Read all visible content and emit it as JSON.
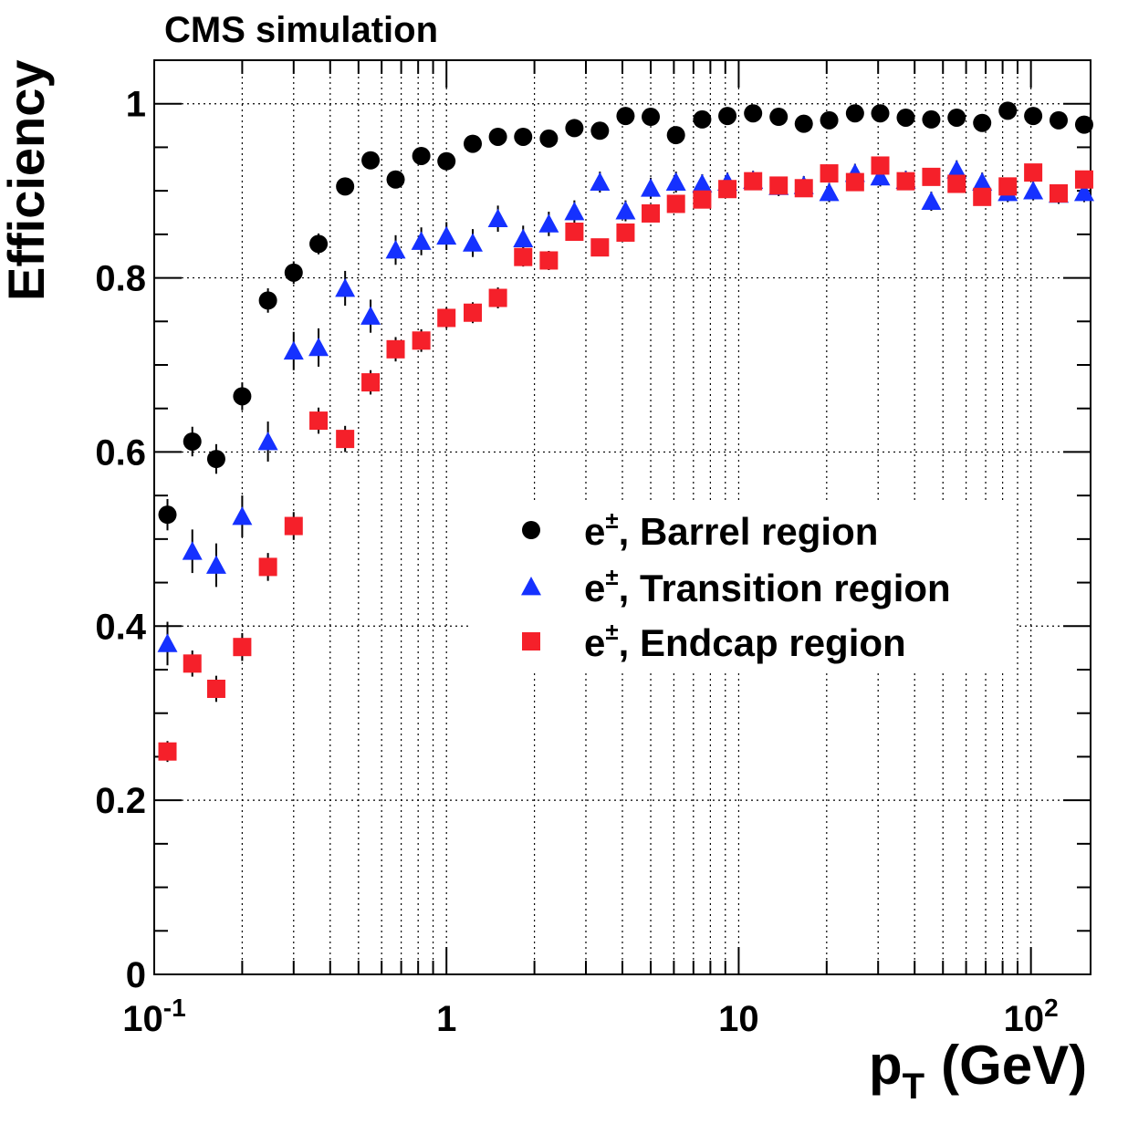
{
  "chart_data": {
    "type": "scatter",
    "title": "CMS simulation",
    "xlabel_main": "p",
    "xlabel_sub": "T",
    "xlabel_unit": "(GeV)",
    "ylabel": "Efficiency",
    "x_scale": "log",
    "xlim": [
      0.1,
      160
    ],
    "ylim": [
      0,
      1.05
    ],
    "grid": true,
    "legend_position": "center-right",
    "x_tick_labels": [
      {
        "value": 0.1,
        "base": "10",
        "exp": "-1"
      },
      {
        "value": 1,
        "base": "1",
        "exp": ""
      },
      {
        "value": 10,
        "base": "10",
        "exp": ""
      },
      {
        "value": 100,
        "base": "10",
        "exp": "2"
      }
    ],
    "y_tick_labels": [
      {
        "value": 0,
        "label": "0"
      },
      {
        "value": 0.2,
        "label": "0.2"
      },
      {
        "value": 0.4,
        "label": "0.4"
      },
      {
        "value": 0.6,
        "label": "0.6"
      },
      {
        "value": 0.8,
        "label": "0.8"
      },
      {
        "value": 1,
        "label": "1"
      }
    ],
    "x": [
      0.111,
      0.135,
      0.163,
      0.2,
      0.245,
      0.3,
      0.365,
      0.45,
      0.55,
      0.67,
      0.82,
      1.0,
      1.23,
      1.5,
      1.83,
      2.24,
      2.74,
      3.35,
      4.1,
      5.0,
      6.1,
      7.5,
      9.15,
      11.2,
      13.7,
      16.7,
      20.4,
      25.0,
      30.5,
      37.3,
      45.6,
      55.7,
      68.1,
      83.3,
      101.8,
      124.4,
      152.1
    ],
    "series": [
      {
        "name": "Barrel region",
        "prefix": "e",
        "superscript": "±",
        "suffix": ", Barrel region",
        "marker": "circle",
        "color": "#000000",
        "y": [
          0.528,
          0.612,
          0.592,
          0.664,
          0.774,
          0.806,
          0.839,
          0.905,
          0.935,
          0.913,
          0.94,
          0.934,
          0.954,
          0.962,
          0.962,
          0.96,
          0.972,
          0.969,
          0.986,
          0.985,
          0.964,
          0.982,
          0.986,
          0.989,
          0.985,
          0.977,
          0.981,
          0.989,
          0.989,
          0.984,
          0.982,
          0.984,
          0.978,
          0.992,
          0.986,
          0.981,
          0.976
        ],
        "err": [
          0.018,
          0.017,
          0.017,
          0.016,
          0.014,
          0.013,
          0.012,
          0.01,
          0.008,
          0.009,
          0.008,
          0.008,
          0.007,
          0.006,
          0.006,
          0.006,
          0.005,
          0.005,
          0.005,
          0.004,
          0.005,
          0.004,
          0.004,
          0.004,
          0.004,
          0.004,
          0.004,
          0.004,
          0.004,
          0.004,
          0.004,
          0.004,
          0.004,
          0.004,
          0.004,
          0.004,
          0.004
        ]
      },
      {
        "name": "Transition region",
        "prefix": "e",
        "superscript": "±",
        "suffix": ", Transition region",
        "marker": "triangle",
        "color": "#1531ff",
        "y": [
          0.38,
          0.486,
          0.47,
          0.526,
          0.612,
          0.716,
          0.72,
          0.788,
          0.756,
          0.832,
          0.842,
          0.848,
          0.84,
          0.868,
          0.845,
          0.862,
          0.876,
          0.91,
          0.877,
          0.903,
          0.91,
          0.908,
          0.91,
          0.912,
          0.905,
          0.906,
          0.898,
          0.92,
          0.916,
          0.912,
          0.888,
          0.924,
          0.91,
          0.898,
          0.9,
          0.896,
          0.898
        ],
        "err": [
          0.025,
          0.025,
          0.025,
          0.024,
          0.023,
          0.022,
          0.022,
          0.02,
          0.019,
          0.017,
          0.016,
          0.016,
          0.016,
          0.015,
          0.015,
          0.014,
          0.013,
          0.012,
          0.012,
          0.012,
          0.012,
          0.011,
          0.011,
          0.011,
          0.011,
          0.011,
          0.011,
          0.011,
          0.011,
          0.011,
          0.011,
          0.011,
          0.011,
          0.011,
          0.011,
          0.011,
          0.011
        ]
      },
      {
        "name": "Endcap region",
        "prefix": "e",
        "superscript": "±",
        "suffix": ", Endcap region",
        "marker": "square",
        "color": "#f5202a",
        "y": [
          0.256,
          0.357,
          0.328,
          0.376,
          0.468,
          0.515,
          0.636,
          0.615,
          0.68,
          0.718,
          0.728,
          0.754,
          0.76,
          0.777,
          0.824,
          0.82,
          0.853,
          0.835,
          0.852,
          0.874,
          0.885,
          0.89,
          0.902,
          0.911,
          0.906,
          0.903,
          0.92,
          0.91,
          0.929,
          0.911,
          0.916,
          0.908,
          0.893,
          0.905,
          0.921,
          0.897,
          0.913
        ],
        "err": [
          0.012,
          0.015,
          0.015,
          0.016,
          0.016,
          0.016,
          0.015,
          0.015,
          0.014,
          0.014,
          0.013,
          0.012,
          0.012,
          0.012,
          0.011,
          0.011,
          0.01,
          0.01,
          0.01,
          0.009,
          0.009,
          0.009,
          0.009,
          0.009,
          0.009,
          0.009,
          0.009,
          0.009,
          0.009,
          0.009,
          0.009,
          0.009,
          0.009,
          0.009,
          0.009,
          0.009,
          0.009
        ]
      }
    ]
  }
}
